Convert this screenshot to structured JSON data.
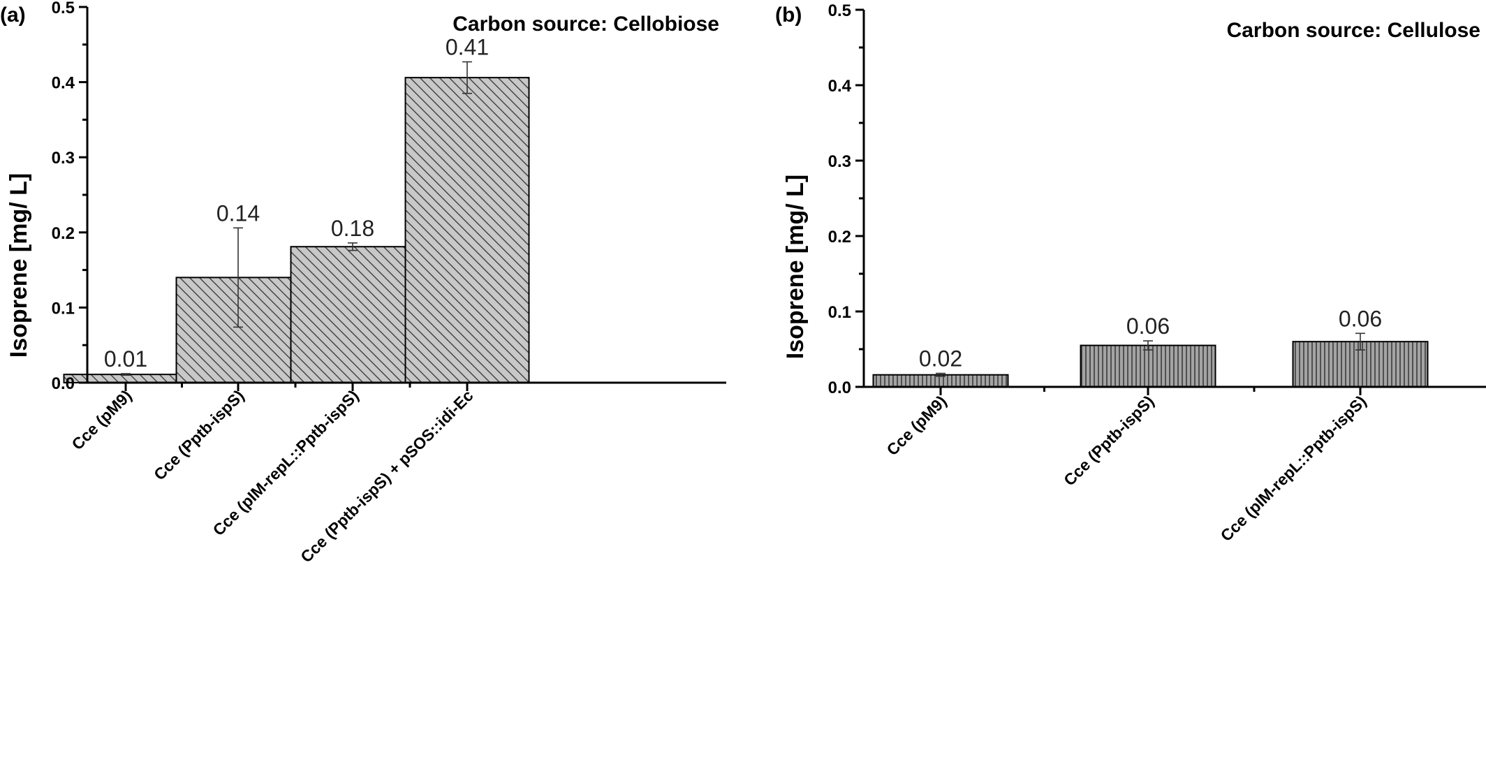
{
  "colors": {
    "bar_fill_a": "#c8c8c8",
    "bar_fill_b": "#9c9c9c",
    "hatch": "#444444",
    "axis": "#000000"
  },
  "chart_data": [
    {
      "type": "bar",
      "panel": "(a)",
      "title": "Carbon source: Cellobiose",
      "xlabel": "",
      "ylabel": "Isoprene [mg/ L]",
      "ylim": [
        0,
        0.5
      ],
      "yticks": [
        "0.0",
        "0.1",
        "0.2",
        "0.3",
        "0.4",
        "0.5"
      ],
      "grid": false,
      "pattern": "diagonal-hatch",
      "categories": [
        "Cce (pM9)",
        "Cce (Pptb-ispS)",
        "Cce (pIM-repL::Pptb-ispS)",
        "Cce (Pptb-ispS) + pSOS::idi-Ec"
      ],
      "values": [
        0.011,
        0.14,
        0.181,
        0.406
      ],
      "errors": [
        0.001,
        0.066,
        0.005,
        0.021
      ],
      "data_labels": [
        "0.01",
        "0.14",
        "0.18",
        "0.41"
      ]
    },
    {
      "type": "bar",
      "panel": "(b)",
      "title": "Carbon source: Cellulose",
      "xlabel": "",
      "ylabel": "Isoprene [mg/ L]",
      "ylim": [
        0,
        0.5
      ],
      "yticks": [
        "0.0",
        "0.1",
        "0.2",
        "0.3",
        "0.4",
        "0.5"
      ],
      "grid": false,
      "pattern": "vertical-lines",
      "categories": [
        "Cce (pM9)",
        "Cce (Pptb-ispS)",
        "Cce (pIM-repL::Pptb-ispS)"
      ],
      "values": [
        0.016,
        0.055,
        0.06
      ],
      "errors": [
        0.002,
        0.006,
        0.011
      ],
      "data_labels": [
        "0.02",
        "0.06",
        "0.06"
      ]
    }
  ]
}
